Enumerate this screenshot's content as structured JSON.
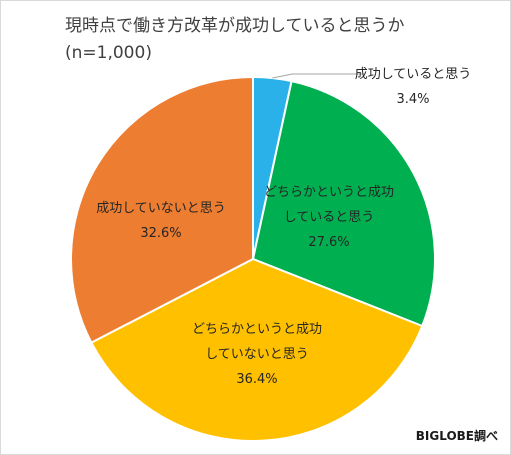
{
  "chart_data": {
    "type": "pie",
    "title": "現時点で働き方改革が成功していると思うか",
    "subtitle": "(n=1,000)",
    "unit": "%",
    "slices": [
      {
        "label": "成功していると思う",
        "label_lines": [
          "成功していると思う"
        ],
        "value": 3.4,
        "value_label": "3.4%",
        "color": "#2bb1ea"
      },
      {
        "label": "どちらかというと成功していると思う",
        "label_lines": [
          "どちらかというと成功",
          "していると思う"
        ],
        "value": 27.6,
        "value_label": "27.6%",
        "color": "#00b050"
      },
      {
        "label": "どちらかというと成功していないと思う",
        "label_lines": [
          "どちらかというと成功",
          "していないと思う"
        ],
        "value": 36.4,
        "value_label": "36.4%",
        "color": "#ffc000"
      },
      {
        "label": "成功していないと思う",
        "label_lines": [
          "成功していないと思う"
        ],
        "value": 32.6,
        "value_label": "32.6%",
        "color": "#ed7d31"
      }
    ],
    "start_angle": "12 o'clock",
    "direction": "clockwise",
    "legend": "none",
    "data_labels": "slice labels with category and percent"
  },
  "source_credit": "BIGLOBE調べ"
}
